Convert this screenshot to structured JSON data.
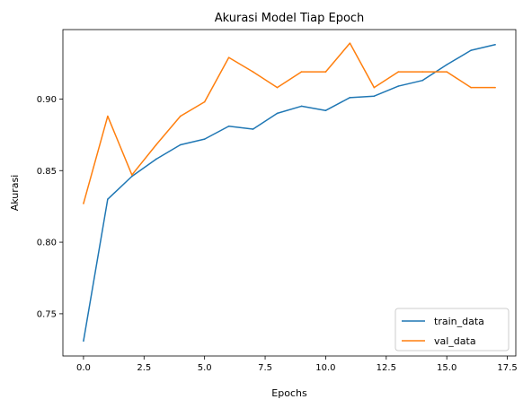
{
  "chart_data": {
    "type": "line",
    "title": "Akurasi Model Tiap Epoch",
    "xlabel": "Epochs",
    "ylabel": "Akurasi",
    "xlim": [
      -0.85,
      17.85
    ],
    "ylim": [
      0.7205,
      0.9485
    ],
    "xticks": [
      0.0,
      2.5,
      5.0,
      7.5,
      10.0,
      12.5,
      15.0,
      17.5
    ],
    "xtick_labels": [
      "0.0",
      "2.5",
      "5.0",
      "7.5",
      "10.0",
      "12.5",
      "15.0",
      "17.5"
    ],
    "yticks": [
      0.75,
      0.8,
      0.85,
      0.9
    ],
    "ytick_labels": [
      "0.75",
      "0.80",
      "0.85",
      "0.90"
    ],
    "grid": false,
    "legend_position": "lower-right",
    "x": [
      0,
      1,
      2,
      3,
      4,
      5,
      6,
      7,
      8,
      9,
      10,
      11,
      12,
      13,
      14,
      15,
      16,
      17
    ],
    "series": [
      {
        "name": "train_data",
        "color": "#1f77b4",
        "values": [
          0.731,
          0.83,
          0.846,
          0.858,
          0.868,
          0.872,
          0.881,
          0.879,
          0.89,
          0.895,
          0.892,
          0.901,
          0.902,
          0.909,
          0.913,
          0.924,
          0.934,
          0.938
        ]
      },
      {
        "name": "val_data",
        "color": "#ff7f0e",
        "values": [
          0.827,
          0.888,
          0.847,
          0.868,
          0.888,
          0.898,
          0.929,
          0.919,
          0.908,
          0.919,
          0.919,
          0.939,
          0.908,
          0.919,
          0.919,
          0.919,
          0.908,
          0.908
        ]
      }
    ]
  }
}
